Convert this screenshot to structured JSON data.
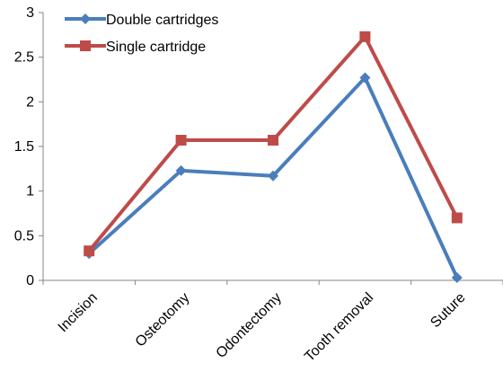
{
  "chart_data": {
    "type": "line",
    "title": "",
    "xlabel": "",
    "ylabel": "",
    "categories": [
      "Incision",
      "Osteotomy",
      "Odontectomy",
      "Tooth removal",
      "Suture"
    ],
    "ylim": [
      0,
      3
    ],
    "yticks": [
      "0",
      "0.5",
      "1",
      "1.5",
      "2",
      "2.5",
      "3"
    ],
    "ytick_values": [
      0,
      0.5,
      1,
      1.5,
      2,
      2.5,
      3
    ],
    "grid": false,
    "legend_position": "top-left",
    "series": [
      {
        "name": "Double cartridges",
        "values": [
          0.3,
          1.23,
          1.17,
          2.27,
          0.03
        ],
        "color": "#4A7EBB",
        "marker": "diamond"
      },
      {
        "name": "Single cartridge",
        "values": [
          0.33,
          1.57,
          1.57,
          2.73,
          0.7
        ],
        "color": "#BE4B48",
        "marker": "square"
      }
    ]
  }
}
